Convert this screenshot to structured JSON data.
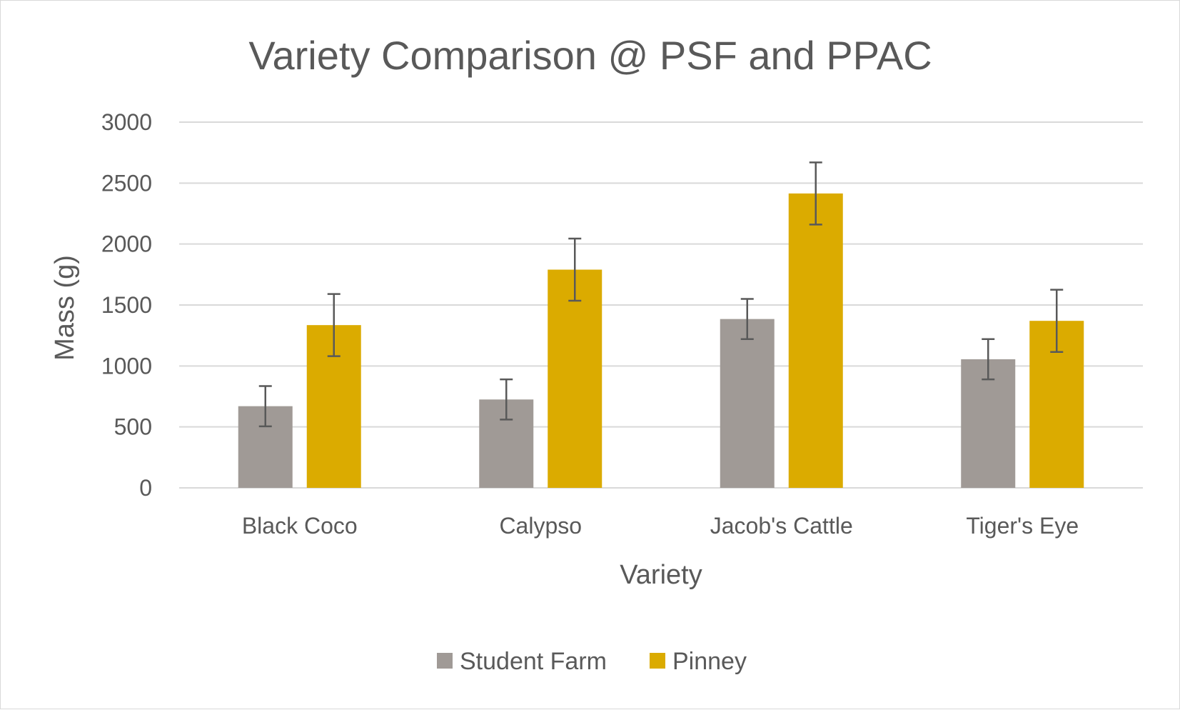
{
  "chart_data": {
    "type": "bar",
    "title": "Variety Comparison @ PSF and PPAC",
    "xlabel": "Variety",
    "ylabel": "Mass (g)",
    "categories": [
      "Black Coco",
      "Calypso",
      "Jacob's Cattle",
      "Tiger's Eye"
    ],
    "series": [
      {
        "name": "Student Farm",
        "color": "#a09a96",
        "values": [
          670,
          725,
          1385,
          1055
        ],
        "error": [
          165,
          165,
          165,
          165
        ]
      },
      {
        "name": "Pinney",
        "color": "#dbab00",
        "values": [
          1335,
          1790,
          2415,
          1370
        ],
        "error": [
          255,
          255,
          255,
          255
        ]
      }
    ],
    "ylim": [
      0,
      3000
    ],
    "yticks": [
      0,
      500,
      1000,
      1500,
      2000,
      2500,
      3000
    ],
    "grid": true,
    "legend_position": "bottom"
  }
}
